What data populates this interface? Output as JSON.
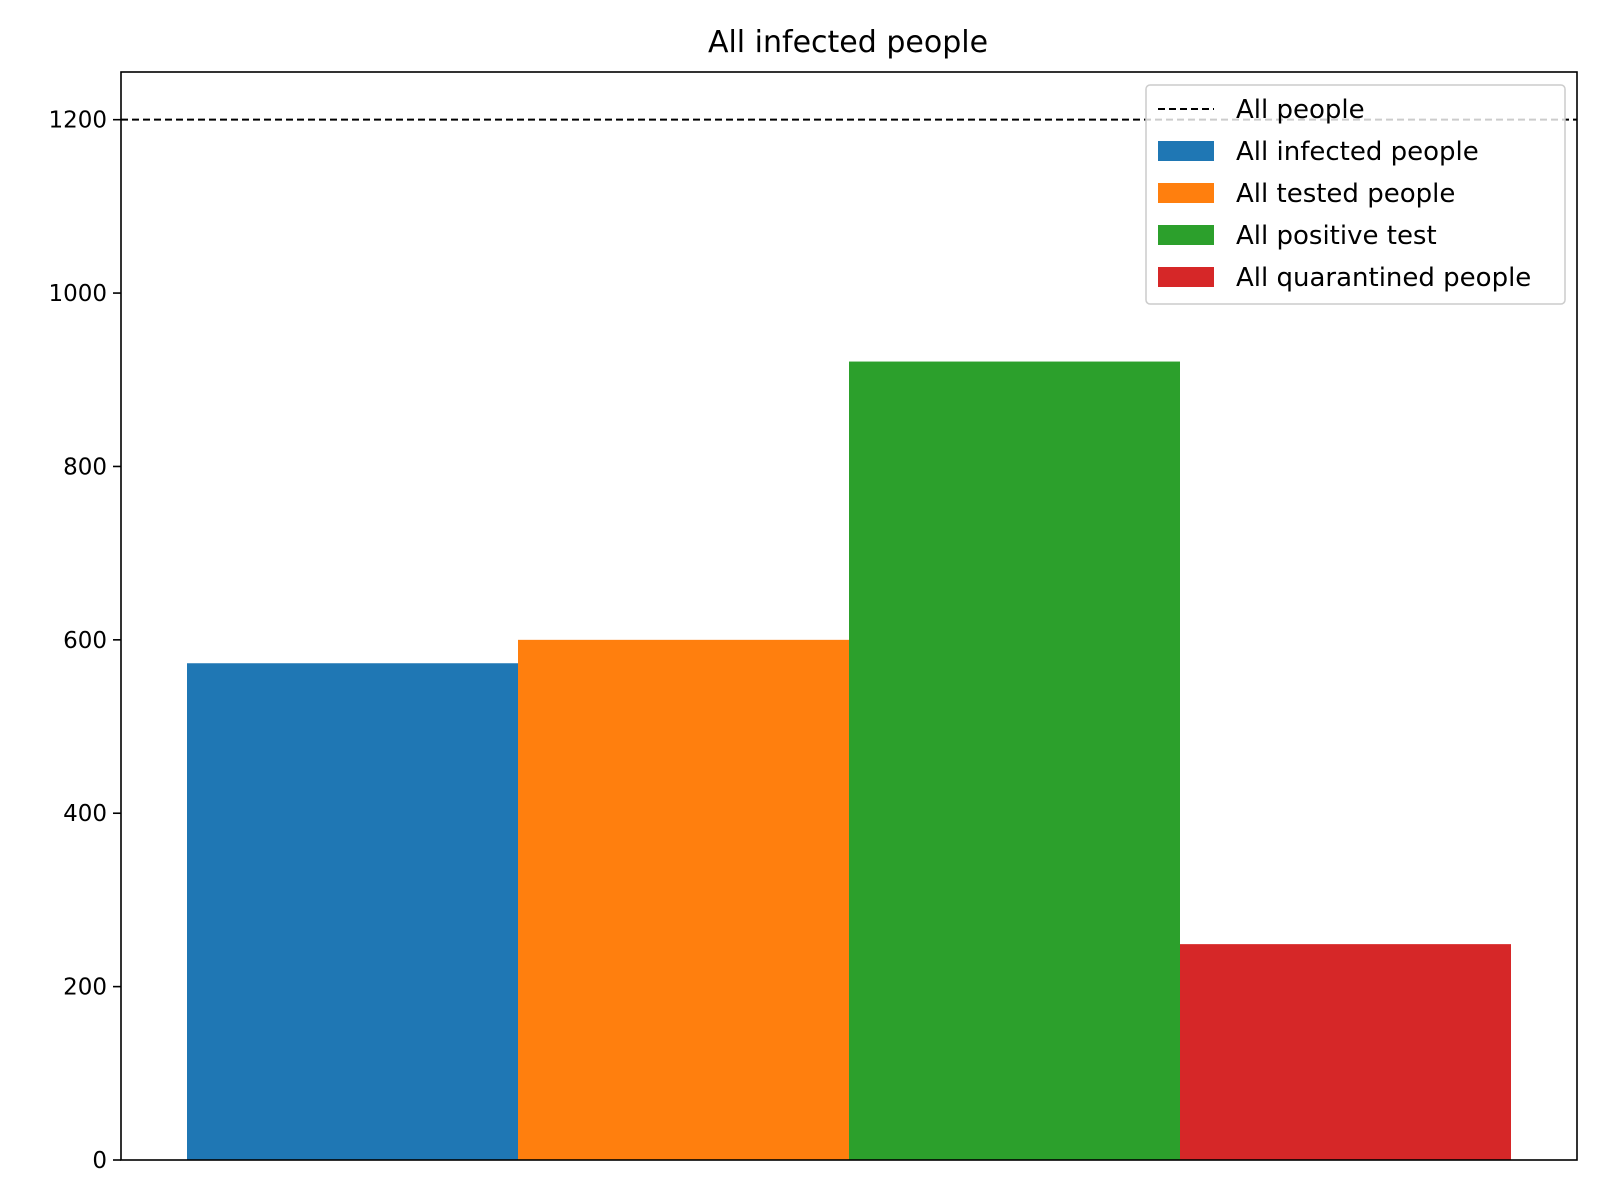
{
  "chart_data": {
    "type": "bar",
    "title": "All infected people",
    "xlabel": "",
    "ylabel": "",
    "ylim": [
      0,
      1255
    ],
    "yticks": [
      0,
      200,
      400,
      600,
      800,
      1000,
      1200
    ],
    "grid": false,
    "legend_position": "top-right",
    "reference_line": {
      "name": "All people",
      "value": 1200,
      "style": "dashed",
      "color": "#000000"
    },
    "series": [
      {
        "name": "All infected people",
        "value": 573,
        "color": "#1f77b4"
      },
      {
        "name": "All tested people",
        "value": 600,
        "color": "#ff7f0e"
      },
      {
        "name": "All positive test",
        "value": 921,
        "color": "#2ca02c"
      },
      {
        "name": "All quarantined people",
        "value": 249,
        "color": "#d62728"
      }
    ]
  }
}
